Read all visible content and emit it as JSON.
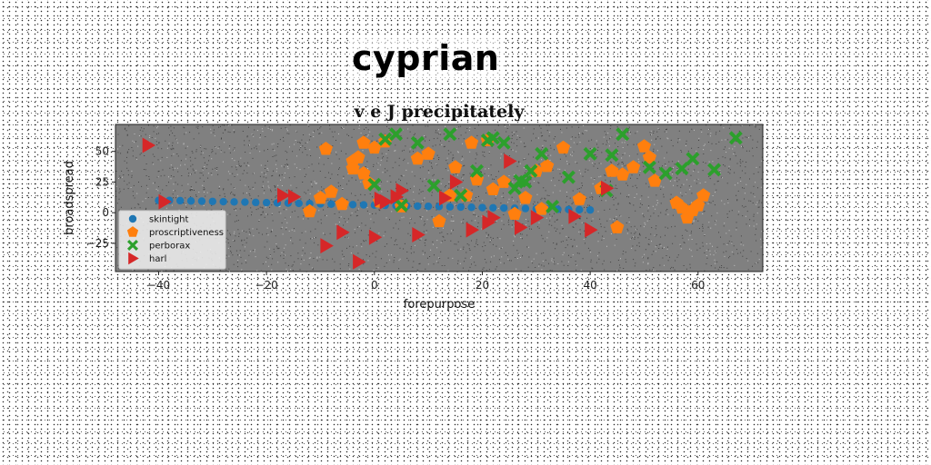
{
  "figure": {
    "suptitle": "cyprian"
  },
  "chart_data": {
    "type": "scatter",
    "title": "v e J precipitately",
    "xlabel": "forepurpose",
    "ylabel": "broadspread",
    "xlim": [
      -48,
      72
    ],
    "ylim": [
      -48,
      72
    ],
    "xticks": [
      -40,
      -20,
      0,
      20,
      40,
      60
    ],
    "yticks": [
      -25,
      0,
      25,
      50
    ],
    "plot_background": "#808080",
    "legend_position": "lower-left",
    "series": [
      {
        "name": "skintight",
        "marker": "circle",
        "color": "#1f77b4",
        "x": [
          -40,
          -38,
          -36,
          -34,
          -32,
          -30,
          -28,
          -26,
          -24,
          -22,
          -20,
          -18,
          -16,
          -14,
          -12,
          -10,
          -8,
          -6,
          -4,
          -2,
          0,
          2,
          4,
          6,
          8,
          10,
          12,
          14,
          16,
          18,
          20,
          22,
          24,
          26,
          28,
          30,
          32,
          34,
          36,
          38,
          40
        ],
        "y": [
          10,
          10,
          9.8,
          9.6,
          9.4,
          9.2,
          9,
          8.8,
          8.6,
          8.4,
          8.2,
          8,
          7.8,
          7.6,
          7.4,
          7.2,
          7,
          6.8,
          6.6,
          6.4,
          6.2,
          6,
          5.8,
          5.6,
          5.4,
          5.2,
          5,
          4.8,
          4.6,
          4.4,
          4.2,
          4,
          3.8,
          3.6,
          3.4,
          3.2,
          3,
          2.8,
          2.6,
          2.4,
          2.2
        ]
      },
      {
        "name": "proscriptiveness",
        "marker": "pentagon",
        "color": "#ff7f0e",
        "x": [
          -9,
          -12,
          -10,
          -8,
          -6,
          -4,
          -4,
          -3,
          -2,
          -2,
          -1,
          0,
          1,
          2,
          5,
          8,
          10,
          12,
          14,
          15,
          17,
          18,
          19,
          21,
          22,
          24,
          26,
          28,
          30,
          31,
          32,
          35,
          38,
          42,
          44,
          45,
          46,
          48,
          50,
          51,
          52,
          56,
          57,
          58,
          59,
          60,
          61
        ],
        "y": [
          52,
          1,
          12,
          17,
          7,
          42,
          36,
          45,
          57,
          32,
          24,
          53,
          9,
          58,
          5,
          44,
          48,
          -7,
          14,
          37,
          14,
          57,
          27,
          59,
          19,
          25,
          -1,
          12,
          34,
          3,
          38,
          53,
          11,
          20,
          34,
          -12,
          31,
          37,
          54,
          45,
          26,
          8,
          4,
          -4,
          2,
          6,
          14
        ]
      },
      {
        "name": "perborax",
        "marker": "x",
        "color": "#2ca02c",
        "x": [
          0,
          2,
          4,
          5,
          8,
          11,
          14,
          16,
          19,
          21,
          22,
          24,
          26,
          27,
          28,
          29,
          31,
          33,
          36,
          40,
          43,
          44,
          46,
          51,
          54,
          57,
          59,
          63,
          67
        ],
        "y": [
          23,
          60,
          64,
          6,
          57,
          22,
          64,
          14,
          34,
          59,
          61,
          57,
          20,
          26,
          25,
          34,
          48,
          5,
          29,
          48,
          18,
          47,
          64,
          37,
          32,
          36,
          44,
          35,
          61
        ]
      },
      {
        "name": "harl",
        "marker": "triangle-right",
        "color": "#d62728",
        "x": [
          -42,
          -39,
          -17,
          -15,
          -9,
          -6,
          -3,
          0,
          1,
          2,
          4,
          5,
          8,
          13,
          15,
          18,
          21,
          22,
          25,
          27,
          30,
          37,
          40,
          43
        ],
        "y": [
          55,
          9,
          14,
          13,
          -27,
          -16,
          -40,
          -20,
          11,
          9,
          13,
          18,
          -18,
          12,
          25,
          -14,
          -8,
          -4,
          42,
          -12,
          -4,
          -3,
          -14,
          20
        ]
      }
    ]
  }
}
